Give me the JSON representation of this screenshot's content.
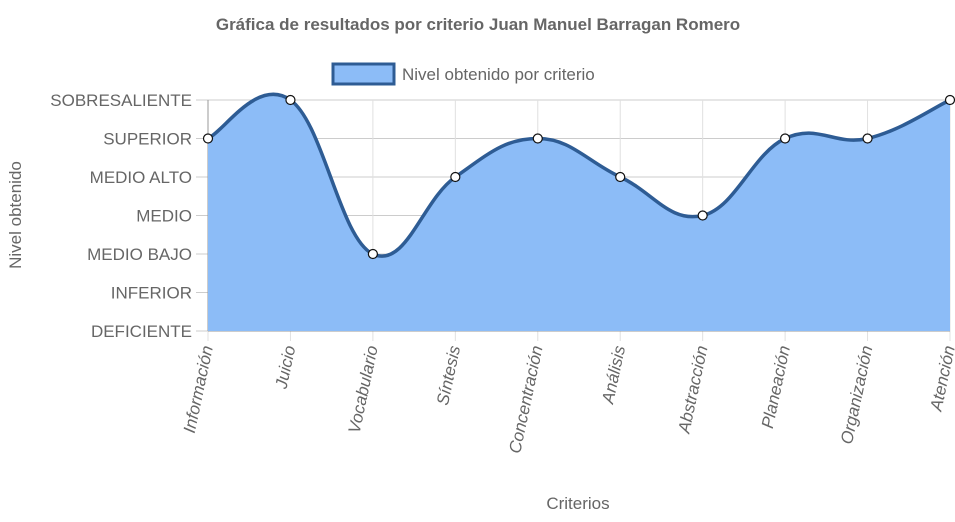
{
  "chart_data": {
    "type": "area",
    "title": "Gráfica de resultados por criterio Juan Manuel Barragan Romero",
    "xlabel": "Criterios",
    "ylabel": "Nivel obtenido",
    "categories": [
      "Información",
      "Juicio",
      "Vocabulario",
      "Síntesis",
      "Concentración",
      "Análisis",
      "Abstracción",
      "Planeación",
      "Organización",
      "Atención"
    ],
    "y_levels": [
      "DEFICIENTE",
      "INFERIOR",
      "MEDIO BAJO",
      "MEDIO",
      "MEDIO ALTO",
      "SUPERIOR",
      "SOBRESALIENTE"
    ],
    "series": [
      {
        "name": "Nivel obtenido por criterio",
        "values": [
          "SUPERIOR",
          "SOBRESALIENTE",
          "MEDIO BAJO",
          "MEDIO ALTO",
          "SUPERIOR",
          "MEDIO ALTO",
          "MEDIO",
          "SUPERIOR",
          "SUPERIOR",
          "SOBRESALIENTE"
        ],
        "fill_color": "#8cbcf7",
        "line_color": "#2e5c94"
      }
    ],
    "grid": true,
    "legend_position": "top"
  }
}
